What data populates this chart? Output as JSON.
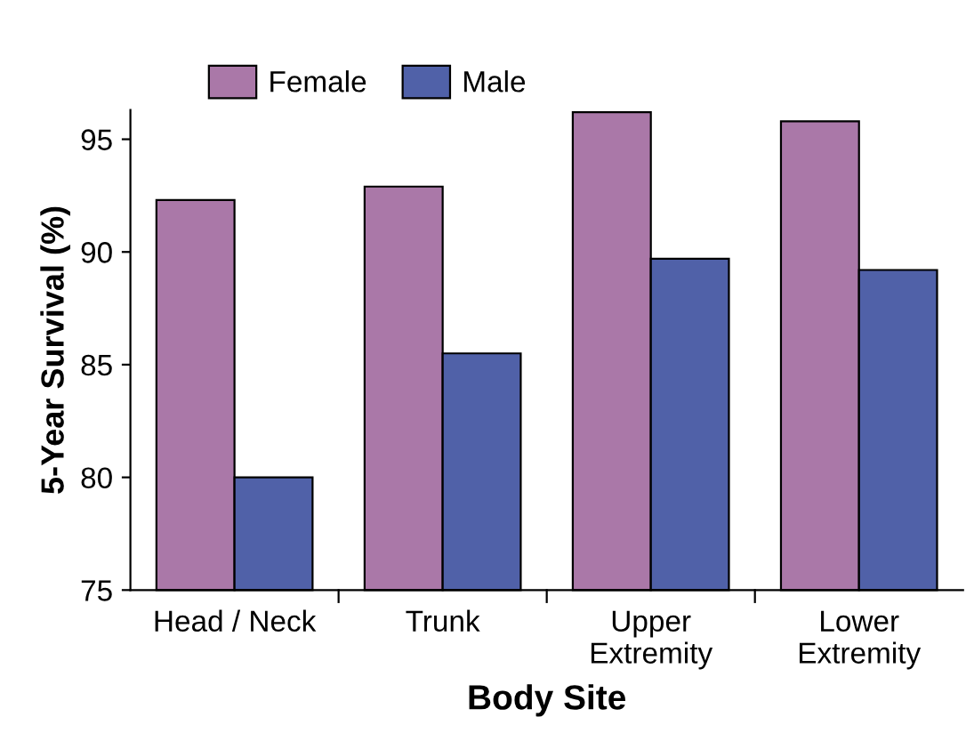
{
  "chart_data": {
    "type": "bar",
    "xlabel": "Body Site",
    "ylabel": "5-Year Survival (%)",
    "categories": [
      "Head / Neck",
      "Trunk",
      "Upper\nExtremity",
      "Lower\nExtremity"
    ],
    "series": [
      {
        "name": "Female",
        "color": "#aa78a8",
        "values": [
          92.3,
          92.9,
          96.2,
          95.8
        ]
      },
      {
        "name": "Male",
        "color": "#5061a8",
        "values": [
          80.0,
          85.5,
          89.7,
          89.2
        ]
      }
    ],
    "ylim": [
      75,
      96.3
    ],
    "yticks": [
      75,
      80,
      85,
      90,
      95
    ],
    "grid": false,
    "legend": "top left"
  }
}
